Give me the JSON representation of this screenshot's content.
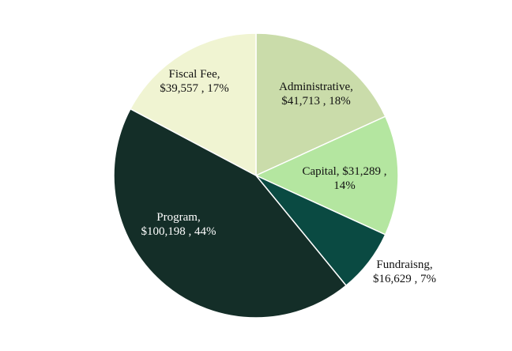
{
  "chart_data": {
    "type": "pie",
    "title": "",
    "slices": [
      {
        "name": "Administrative",
        "value": 41713,
        "percent": "18%",
        "color": "#cadcaa",
        "text_color": "#111111",
        "label_lines": [
          "Administrative,",
          "$41,713 , 18%"
        ]
      },
      {
        "name": "Capital",
        "value": 31289,
        "percent": "14%",
        "color": "#b4e6a0",
        "text_color": "#111111",
        "label_lines": [
          "Capital, $31,289 ,",
          "14%"
        ]
      },
      {
        "name": "Fundraisng",
        "value": 16629,
        "percent": "7%",
        "color": "#0a4a42",
        "text_color": "#111111",
        "label_lines": [
          "Fundraisng,",
          "$16,629 , 7%"
        ]
      },
      {
        "name": "Program",
        "value": 100198,
        "percent": "44%",
        "color": "#142e28",
        "text_color": "#ffffff",
        "label_lines": [
          "Program,",
          "$100,198 , 44%"
        ]
      },
      {
        "name": "Fiscal Fee",
        "value": 39557,
        "percent": "17%",
        "color": "#f0f4d2",
        "text_color": "#111111",
        "label_lines": [
          "Fiscal Fee,",
          "$39,557 , 17%"
        ]
      }
    ],
    "start_angle": "top",
    "direction": "clockwise",
    "legend": "none"
  }
}
